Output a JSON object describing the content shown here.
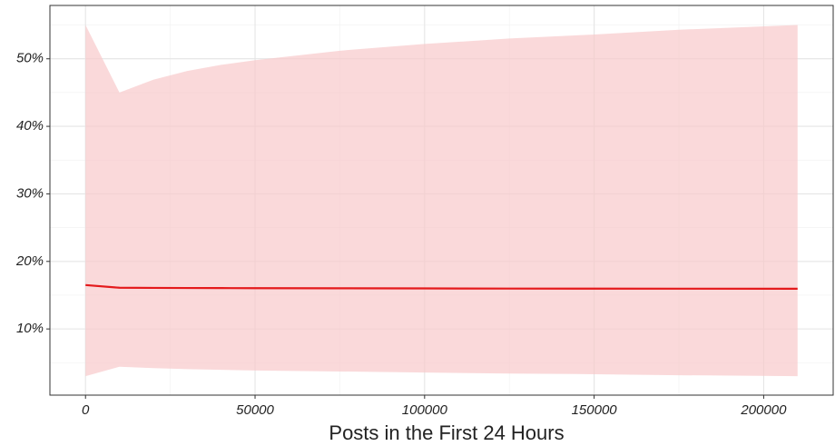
{
  "chart_data": {
    "type": "line",
    "xlabel": "Posts in the First 24 Hours",
    "x": [
      0,
      10000,
      20000,
      30000,
      40000,
      50000,
      75000,
      100000,
      125000,
      150000,
      175000,
      210000
    ],
    "series": [
      {
        "color": "#e41a1c",
        "band_color": "#f8c9cb",
        "values": [
          16.5,
          16.1,
          16.08,
          16.06,
          16.05,
          16.04,
          16.02,
          16.0,
          15.98,
          15.97,
          15.96,
          15.95
        ],
        "lower": [
          3.0,
          4.4,
          4.2,
          4.05,
          3.95,
          3.85,
          3.7,
          3.55,
          3.4,
          3.3,
          3.15,
          3.0
        ],
        "upper": [
          55,
          45,
          46.9,
          48.2,
          49.1,
          49.8,
          51.2,
          52.2,
          53,
          53.6,
          54.3,
          55
        ]
      }
    ],
    "xlim": [
      -10500,
      220500
    ],
    "xticks": [
      0,
      50000,
      100000,
      150000,
      200000
    ],
    "x_minor_ticks": [
      25000,
      75000,
      125000,
      175000
    ],
    "ylim": [
      0.2,
      57.9
    ],
    "yticks": [
      {
        "value": 10,
        "label": "10%"
      },
      {
        "value": 20,
        "label": "20%"
      },
      {
        "value": 30,
        "label": "30%"
      },
      {
        "value": 40,
        "label": "40%"
      },
      {
        "value": 50,
        "label": "50%"
      }
    ],
    "y_minor_ticks": [
      5,
      15,
      25,
      35,
      45,
      55
    ],
    "grid": true
  }
}
